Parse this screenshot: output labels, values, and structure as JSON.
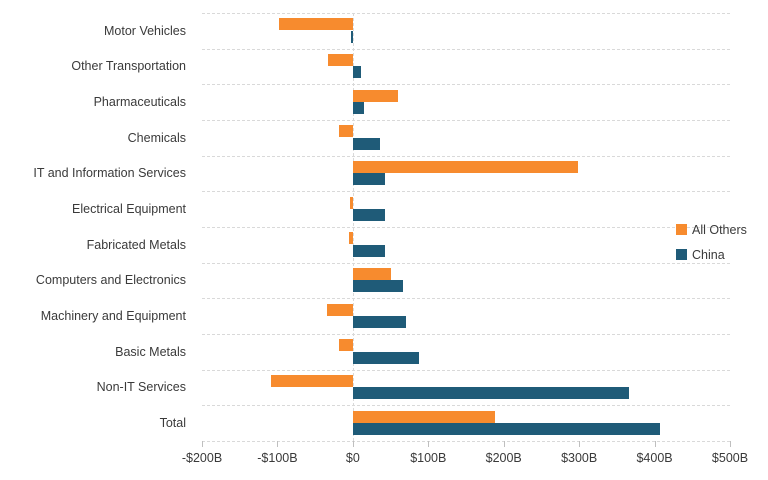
{
  "chart_data": {
    "type": "bar",
    "orientation": "horizontal",
    "values_unit": "USD billions",
    "categories": [
      "Motor Vehicles",
      "Other Transportation",
      "Pharmaceuticals",
      "Chemicals",
      "IT and Information Services",
      "Electrical Equipment",
      "Fabricated Metals",
      "Computers and Electronics",
      "Machinery and Equipment",
      "Basic Metals",
      "Non-IT Services",
      "Total"
    ],
    "series": [
      {
        "name": "All Others",
        "color": "#F78B2E",
        "values": [
          -98,
          -33,
          60,
          -19,
          298,
          -4,
          -5,
          50,
          -34,
          -19,
          -108,
          188
        ]
      },
      {
        "name": "China",
        "color": "#1F5B78",
        "values": [
          -3,
          11,
          15,
          36,
          42,
          43,
          43,
          66,
          70,
          88,
          366,
          407
        ]
      }
    ],
    "xlabel": "",
    "ylabel": "",
    "xlim": [
      -200,
      500
    ],
    "x_tick_values": [
      -200,
      -100,
      0,
      100,
      200,
      300,
      400,
      500
    ],
    "x_ticks": [
      "-$200B",
      "-$100B",
      "$0",
      "$100B",
      "$200B",
      "$300B",
      "$400B",
      "$500B"
    ],
    "grid": "dashed horizontal row separators and dashed zero line",
    "legend_position": "right"
  },
  "colors": {
    "gridline": "#d9d9d9",
    "tick": "#bfbfbf",
    "text": "#3a3a3a"
  }
}
